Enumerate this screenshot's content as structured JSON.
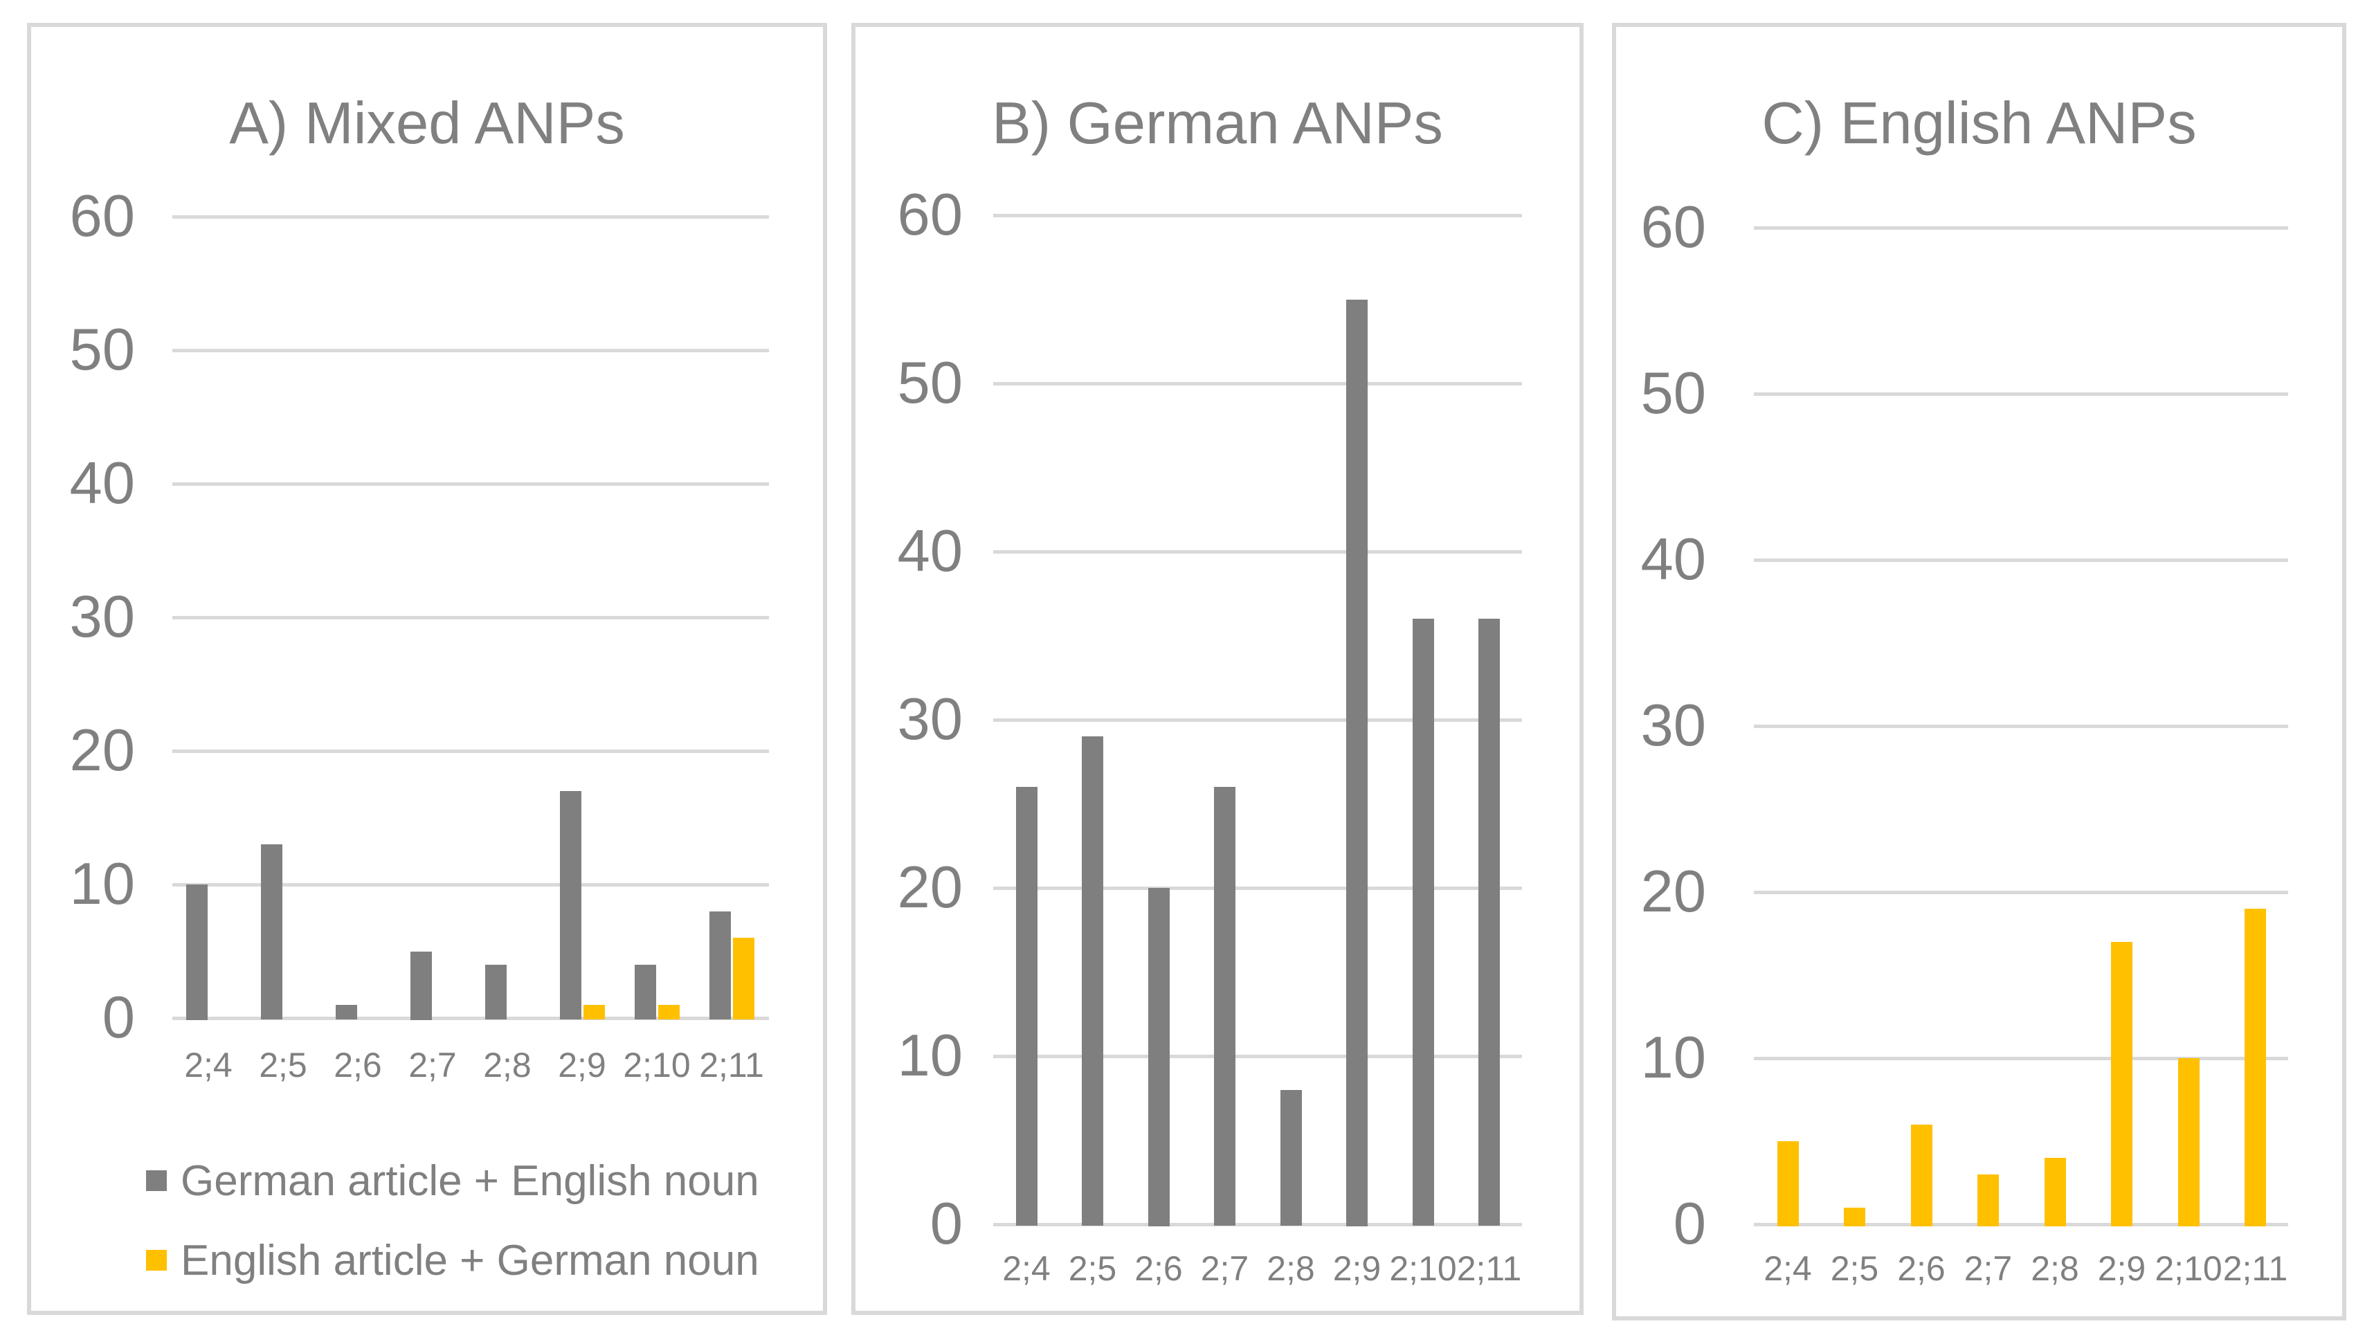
{
  "colors": {
    "bar_gray": "#7f7f7f",
    "bar_yellow": "#ffc000",
    "gridline": "#d9d9d9",
    "panel_border": "#d9d9d9",
    "text": "#808080"
  },
  "chart_data": [
    {
      "type": "bar",
      "title": "A) Mixed ANPs",
      "categories": [
        "2;4",
        "2;5",
        "2;6",
        "2;7",
        "2;8",
        "2;9",
        "2;10",
        "2;11"
      ],
      "series": [
        {
          "name": "German article + English noun",
          "color_key": "bar_gray",
          "values": [
            10,
            13,
            1,
            5,
            4,
            17,
            4,
            8
          ]
        },
        {
          "name": "English article + German noun",
          "color_key": "bar_yellow",
          "values": [
            0,
            0,
            0,
            0,
            0,
            1,
            1,
            6
          ]
        }
      ],
      "ylim": [
        0,
        60
      ],
      "yticks": [
        0,
        10,
        20,
        30,
        40,
        50,
        60
      ],
      "grid": true,
      "legend_position": "bottom"
    },
    {
      "type": "bar",
      "title": "B) German ANPs",
      "categories": [
        "2;4",
        "2;5",
        "2;6",
        "2;7",
        "2;8",
        "2;9",
        "2;10",
        "2;11"
      ],
      "series": [
        {
          "name": "German ANPs",
          "color_key": "bar_gray",
          "values": [
            26,
            29,
            20,
            26,
            8,
            55,
            36,
            36
          ]
        }
      ],
      "ylim": [
        0,
        60
      ],
      "yticks": [
        0,
        10,
        20,
        30,
        40,
        50,
        60
      ],
      "grid": true,
      "legend_position": "none"
    },
    {
      "type": "bar",
      "title": "C) English ANPs",
      "categories": [
        "2;4",
        "2;5",
        "2;6",
        "2;7",
        "2;8",
        "2;9",
        "2;10",
        "2;11"
      ],
      "series": [
        {
          "name": "English ANPs",
          "color_key": "bar_yellow",
          "values": [
            5,
            1,
            6,
            3,
            4,
            17,
            10,
            19
          ]
        }
      ],
      "ylim": [
        0,
        60
      ],
      "yticks": [
        0,
        10,
        20,
        30,
        40,
        50,
        60
      ],
      "grid": true,
      "legend_position": "none"
    }
  ]
}
